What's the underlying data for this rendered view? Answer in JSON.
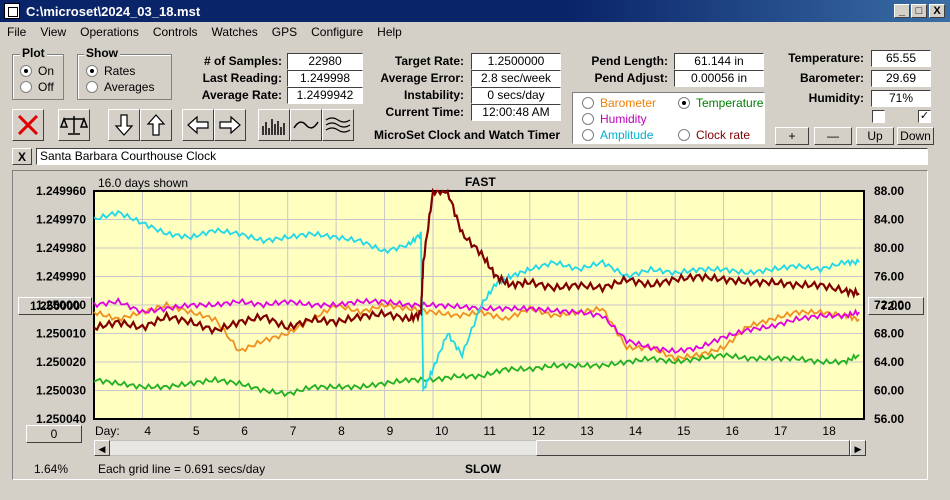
{
  "window": {
    "title": "C:\\microset\\2024_03_18.mst",
    "min": "_",
    "max": "□",
    "close": "X"
  },
  "menu": [
    "File",
    "View",
    "Operations",
    "Controls",
    "Watches",
    "GPS",
    "Configure",
    "Help"
  ],
  "plot_group": {
    "title": "Plot",
    "on": "On",
    "off": "Off"
  },
  "show_group": {
    "title": "Show",
    "rates": "Rates",
    "averages": "Averages"
  },
  "stats": {
    "samples_label": "# of Samples:",
    "samples": "22980",
    "last_label": "Last Reading:",
    "last": "1.249998",
    "avg_label": "Average Rate:",
    "avg": "1.2499942",
    "target_label": "Target Rate:",
    "target": "1.2500000",
    "avgerr_label": "Average Error:",
    "avgerr": "2.8 sec/week",
    "instab_label": "Instability:",
    "instab": "0 secs/day",
    "time_label": "Current Time:",
    "time": "12:00:48 AM",
    "pendlen_label": "Pend Length:",
    "pendlen": "61.144 in",
    "pendadj_label": "Pend Adjust:",
    "pendadj": "0.00056 in",
    "temp_label": "Temperature:",
    "temp": "65.55",
    "baro_label": "Barometer:",
    "baro": "29.69",
    "hum_label": "Humidity:",
    "hum": "71%"
  },
  "app_caption": "MicroSet Clock and Watch Timer",
  "sensors": {
    "barometer": "Barometer",
    "temperature": "Temperature",
    "humidity": "Humidity",
    "amplitude": "Amplitude",
    "clockrate": "Clock rate",
    "colors": {
      "barometer": "#f08000",
      "temperature": "#008000",
      "humidity": "#c000c0",
      "amplitude": "#00b0d0"
    }
  },
  "adjust_buttons": {
    "plus": "+",
    "minus": "—",
    "up": "Up",
    "down": "Down"
  },
  "clock_name": "Santa Barbara Courthouse Clock",
  "close_x": "X",
  "chart": {
    "days_shown": "16.0 days shown",
    "fast": "FAST",
    "slow": "SLOW",
    "grid_note": "Each grid line = 0.691 secs/day",
    "percent": "1.64%",
    "center_button": "1.250000",
    "zero_button": "0",
    "right_button": "72.00",
    "day_label": "Day:"
  },
  "chart_data": {
    "type": "line",
    "xlabel": "Day:",
    "x_ticks": [
      4,
      5,
      6,
      7,
      8,
      9,
      10,
      11,
      12,
      13,
      14,
      15,
      16,
      17,
      18
    ],
    "left_ticks": [
      "1.249960",
      "1.249970",
      "1.249980",
      "1.249990",
      "1.250000",
      "1.250010",
      "1.250020",
      "1.250030",
      "1.250040"
    ],
    "left_range": [
      1.24996,
      1.25004
    ],
    "right_ticks": [
      "88.00",
      "84.00",
      "80.00",
      "76.00",
      "72.00",
      "68.00",
      "64.00",
      "60.00",
      "56.00"
    ],
    "right_range": [
      56,
      88
    ],
    "xlim": [
      3.0,
      18.9
    ],
    "series": [
      {
        "name": "Clock rate",
        "color": "#800000",
        "axis": "left",
        "x": [
          3.0,
          3.5,
          4.0,
          4.5,
          5.0,
          5.5,
          6.0,
          6.5,
          7.0,
          7.5,
          8.0,
          8.5,
          9.0,
          9.5,
          9.75,
          9.8,
          10.0,
          10.3,
          10.6,
          11.0,
          11.3,
          11.6,
          12.0,
          12.5,
          13.0,
          13.5,
          14.0,
          14.5,
          15.0,
          15.5,
          16.0,
          16.5,
          17.0,
          17.5,
          18.0,
          18.5,
          18.8
        ],
        "y": [
          1.250008,
          1.250006,
          1.250008,
          1.250004,
          1.250006,
          1.250009,
          1.250006,
          1.250004,
          1.250008,
          1.250005,
          1.250006,
          1.250004,
          1.250003,
          1.250005,
          1.250003,
          1.249985,
          1.24996,
          1.24996,
          1.249975,
          1.249982,
          1.24999,
          1.249993,
          1.249992,
          1.249994,
          1.249993,
          1.249994,
          1.249991,
          1.249993,
          1.249991,
          1.24999,
          1.249991,
          1.249992,
          1.249992,
          1.249993,
          1.249993,
          1.249995,
          1.249996
        ]
      },
      {
        "name": "Amplitude",
        "color": "#20d8e8",
        "axis": "right",
        "x": [
          3.0,
          3.5,
          4.0,
          4.5,
          5.0,
          5.5,
          6.0,
          6.5,
          7.0,
          7.5,
          8.0,
          8.5,
          9.0,
          9.5,
          9.75,
          9.8,
          10.0,
          10.3,
          10.6,
          11.0,
          11.3,
          11.6,
          12.0,
          12.5,
          13.0,
          13.5,
          14.0,
          14.5,
          15.0,
          15.5,
          16.0,
          16.5,
          17.0,
          17.5,
          18.0,
          18.5,
          18.8
        ],
        "y": [
          84,
          85,
          83.5,
          82,
          81.5,
          82.5,
          82,
          81,
          81.5,
          82,
          81.5,
          81,
          79.5,
          80.5,
          82,
          60,
          63,
          68,
          65,
          72,
          75,
          76,
          77,
          78,
          77,
          78,
          76,
          77,
          76.5,
          77,
          77,
          76.5,
          77,
          77.5,
          77,
          78,
          78
        ]
      },
      {
        "name": "Humidity",
        "color": "#e000e0",
        "axis": "right",
        "x": [
          3.0,
          3.5,
          4.0,
          4.5,
          5.0,
          5.5,
          6.0,
          6.5,
          7.0,
          7.5,
          8.0,
          8.5,
          9.0,
          9.5,
          10.0,
          10.5,
          11.0,
          11.5,
          12.0,
          12.5,
          13.0,
          13.5,
          14.0,
          14.5,
          15.0,
          15.5,
          16.0,
          16.5,
          17.0,
          17.5,
          18.0,
          18.5,
          18.8
        ],
        "y": [
          72,
          72.5,
          71,
          71.5,
          72,
          72,
          72.5,
          72,
          72.5,
          72,
          72,
          72.5,
          72.5,
          72,
          72,
          71.8,
          71.5,
          71.5,
          71.5,
          71.2,
          71,
          70.5,
          67,
          66,
          65.5,
          66,
          67.5,
          68.5,
          69,
          70,
          70.5,
          70.5,
          71
        ]
      },
      {
        "name": "Barometer",
        "color": "#f09020",
        "axis": "right",
        "x": [
          3.0,
          3.5,
          4.0,
          4.5,
          5.0,
          5.5,
          6.0,
          6.5,
          7.0,
          7.5,
          8.0,
          8.5,
          9.0,
          9.5,
          10.0,
          10.5,
          11.0,
          11.5,
          12.0,
          12.5,
          13.0,
          13.5,
          14.0,
          14.5,
          15.0,
          15.5,
          16.0,
          16.5,
          17.0,
          17.5,
          18.0,
          18.5,
          18.8
        ],
        "y": [
          71,
          70,
          71,
          72,
          71,
          70,
          65.5,
          67,
          68,
          70,
          72,
          71,
          72,
          71.5,
          71,
          70.5,
          71,
          70,
          71.5,
          70.5,
          71,
          71.5,
          66,
          66,
          64.5,
          65,
          66,
          69,
          70,
          71,
          71,
          70.5,
          70
        ]
      },
      {
        "name": "Temperature",
        "color": "#20b020",
        "axis": "right",
        "x": [
          3.0,
          3.5,
          4.0,
          4.5,
          5.0,
          5.5,
          6.0,
          6.5,
          7.0,
          7.5,
          8.0,
          8.5,
          9.0,
          9.5,
          10.0,
          10.5,
          11.0,
          11.5,
          12.0,
          12.5,
          13.0,
          13.5,
          14.0,
          14.5,
          15.0,
          15.5,
          16.0,
          16.5,
          17.0,
          17.5,
          18.0,
          18.5,
          18.8
        ],
        "y": [
          61.5,
          61,
          60.5,
          60.5,
          61,
          61.5,
          61,
          60,
          59.5,
          60.5,
          60.5,
          60.5,
          61,
          61.5,
          61.5,
          62,
          62,
          63,
          63,
          63.5,
          63.5,
          63.5,
          64,
          64.5,
          64,
          64.5,
          65,
          64.5,
          64.5,
          64.5,
          64,
          64,
          65
        ]
      }
    ]
  }
}
